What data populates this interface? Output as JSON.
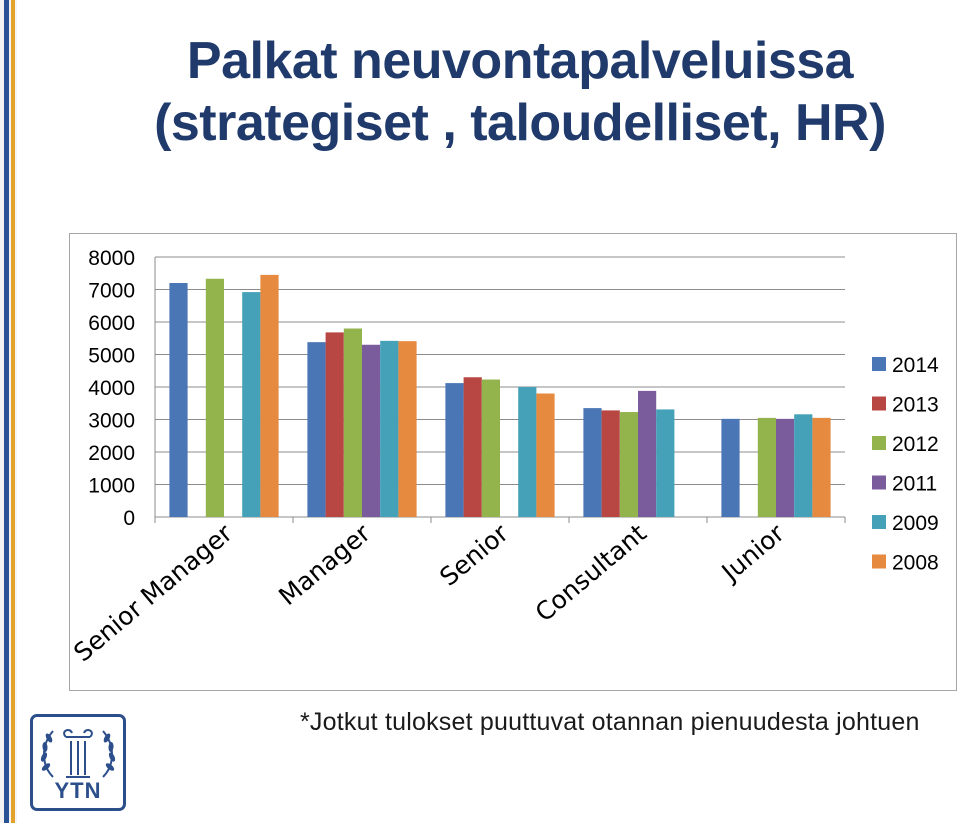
{
  "title": {
    "line1": "Palkat neuvontapalveluissa",
    "line2": "(strategiset , taloudelliset, HR)"
  },
  "footnote": "*Jotkut tulokset puuttuvat otannan pienuudesta johtuen",
  "logo": {
    "text": "YTN",
    "icon": "laurel-column-emblem-icon",
    "color": "#2c4f8c"
  },
  "chart_data": {
    "type": "bar",
    "title": "",
    "xlabel": "",
    "ylabel": "",
    "ylim": [
      0,
      8000
    ],
    "yticks": [
      "0",
      "1000",
      "2000",
      "3000",
      "4000",
      "5000",
      "6000",
      "7000",
      "8000"
    ],
    "grid": true,
    "legend_position": "right",
    "categories": [
      "Senior Manager",
      "Manager",
      "Senior",
      "Consultant",
      "Junior"
    ],
    "series": [
      {
        "name": "2014",
        "color": "#4a76b5",
        "values": [
          7200,
          5380,
          4120,
          3350,
          3020
        ]
      },
      {
        "name": "2013",
        "color": "#b84744",
        "values": [
          null,
          5680,
          4300,
          3280,
          null
        ]
      },
      {
        "name": "2012",
        "color": "#93b44c",
        "values": [
          7330,
          5800,
          4230,
          3230,
          3050
        ]
      },
      {
        "name": "2011",
        "color": "#7a5c9d",
        "values": [
          null,
          5300,
          null,
          3880,
          3020
        ]
      },
      {
        "name": "2009",
        "color": "#44a1b7",
        "values": [
          6920,
          5420,
          4000,
          3310,
          3160
        ]
      },
      {
        "name": "2008",
        "color": "#e68a3f",
        "values": [
          7450,
          5410,
          3800,
          null,
          3050
        ]
      }
    ]
  }
}
